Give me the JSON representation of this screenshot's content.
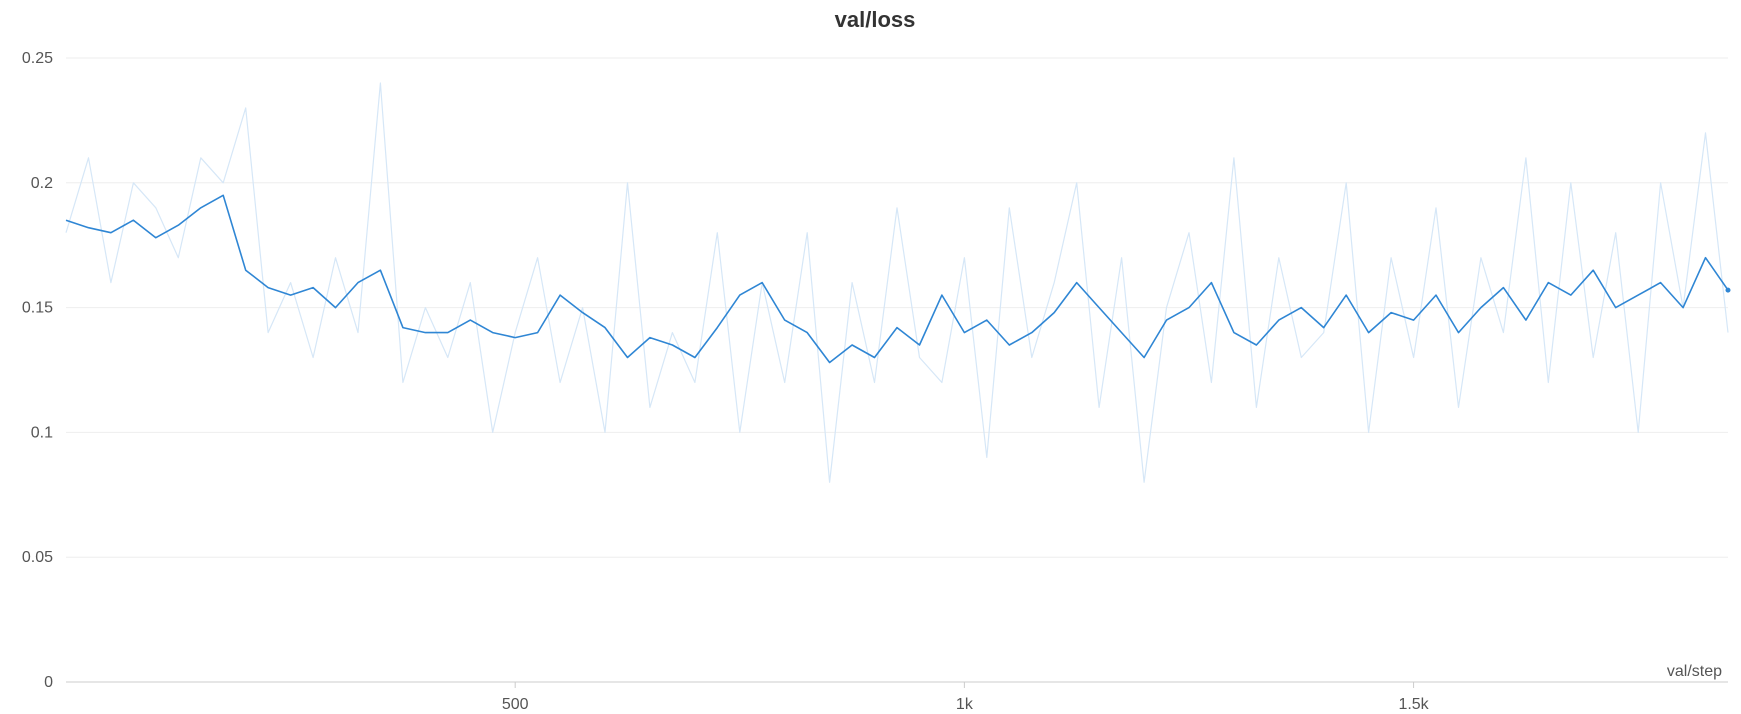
{
  "chart_data": {
    "type": "line",
    "title": "val/loss",
    "xlabel": "val/step",
    "ylabel": "",
    "xlim": [
      0,
      1850
    ],
    "ylim": [
      0,
      0.25
    ],
    "yticks": [
      0,
      0.05,
      0.1,
      0.15,
      0.2,
      0.25
    ],
    "ytick_labels": [
      "0",
      "0.05",
      "0.1",
      "0.15",
      "0.2",
      "0.25"
    ],
    "xticks": [
      500,
      1000,
      1500
    ],
    "xtick_labels": [
      "500",
      "1k",
      "1.5k"
    ],
    "grid": true,
    "legend": "none",
    "series": [
      {
        "role": "raw",
        "color": "#d6e7f7",
        "x": [
          0,
          25,
          50,
          75,
          100,
          125,
          150,
          175,
          200,
          225,
          250,
          275,
          300,
          325,
          350,
          375,
          400,
          425,
          450,
          475,
          500,
          525,
          550,
          575,
          600,
          625,
          650,
          675,
          700,
          725,
          750,
          775,
          800,
          825,
          850,
          875,
          900,
          925,
          950,
          975,
          1000,
          1025,
          1050,
          1075,
          1100,
          1125,
          1150,
          1175,
          1200,
          1225,
          1250,
          1275,
          1300,
          1325,
          1350,
          1375,
          1400,
          1425,
          1450,
          1475,
          1500,
          1525,
          1550,
          1575,
          1600,
          1625,
          1650,
          1675,
          1700,
          1725,
          1750,
          1775,
          1800,
          1825,
          1850
        ],
        "y": [
          0.18,
          0.21,
          0.16,
          0.2,
          0.19,
          0.17,
          0.21,
          0.2,
          0.23,
          0.14,
          0.16,
          0.13,
          0.17,
          0.14,
          0.24,
          0.12,
          0.15,
          0.13,
          0.16,
          0.1,
          0.14,
          0.17,
          0.12,
          0.15,
          0.1,
          0.2,
          0.11,
          0.14,
          0.12,
          0.18,
          0.1,
          0.16,
          0.12,
          0.18,
          0.08,
          0.16,
          0.12,
          0.19,
          0.13,
          0.12,
          0.17,
          0.09,
          0.19,
          0.13,
          0.16,
          0.2,
          0.11,
          0.17,
          0.08,
          0.15,
          0.18,
          0.12,
          0.21,
          0.11,
          0.17,
          0.13,
          0.14,
          0.2,
          0.1,
          0.17,
          0.13,
          0.19,
          0.11,
          0.17,
          0.14,
          0.21,
          0.12,
          0.2,
          0.13,
          0.18,
          0.1,
          0.2,
          0.15,
          0.22,
          0.14
        ]
      },
      {
        "role": "smoothed",
        "color": "#2f86d4",
        "x": [
          0,
          25,
          50,
          75,
          100,
          125,
          150,
          175,
          200,
          225,
          250,
          275,
          300,
          325,
          350,
          375,
          400,
          425,
          450,
          475,
          500,
          525,
          550,
          575,
          600,
          625,
          650,
          675,
          700,
          725,
          750,
          775,
          800,
          825,
          850,
          875,
          900,
          925,
          950,
          975,
          1000,
          1025,
          1050,
          1075,
          1100,
          1125,
          1150,
          1175,
          1200,
          1225,
          1250,
          1275,
          1300,
          1325,
          1350,
          1375,
          1400,
          1425,
          1450,
          1475,
          1500,
          1525,
          1550,
          1575,
          1600,
          1625,
          1650,
          1675,
          1700,
          1725,
          1750,
          1775,
          1800,
          1825,
          1850
        ],
        "y": [
          0.185,
          0.182,
          0.18,
          0.185,
          0.178,
          0.183,
          0.19,
          0.195,
          0.165,
          0.158,
          0.155,
          0.158,
          0.15,
          0.16,
          0.165,
          0.142,
          0.14,
          0.14,
          0.145,
          0.14,
          0.138,
          0.14,
          0.155,
          0.148,
          0.142,
          0.13,
          0.138,
          0.135,
          0.13,
          0.142,
          0.155,
          0.16,
          0.145,
          0.14,
          0.128,
          0.135,
          0.13,
          0.142,
          0.135,
          0.155,
          0.14,
          0.145,
          0.135,
          0.14,
          0.148,
          0.16,
          0.15,
          0.14,
          0.13,
          0.145,
          0.15,
          0.16,
          0.14,
          0.135,
          0.145,
          0.15,
          0.142,
          0.155,
          0.14,
          0.148,
          0.145,
          0.155,
          0.14,
          0.15,
          0.158,
          0.145,
          0.16,
          0.155,
          0.165,
          0.15,
          0.155,
          0.16,
          0.15,
          0.17,
          0.157
        ]
      }
    ]
  }
}
